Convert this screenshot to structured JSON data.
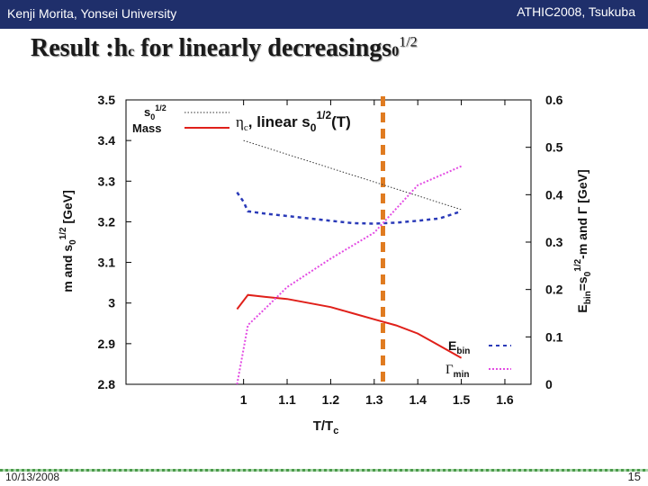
{
  "header": {
    "left": "Kenji Morita, Yonsei University",
    "right": "ATHIC2008, Tsukuba"
  },
  "title": {
    "main": "Result :h",
    "sub": "c",
    "rest": " for linearly decreasing",
    "s": "s",
    "s_sub": "0",
    "s_sup": "1/2"
  },
  "footer": {
    "date": "10/13/2008",
    "page": "15"
  },
  "colors": {
    "mass": "#e0201a",
    "ebin": "#2a3ab8",
    "gamma": "#e34de3",
    "s0": "#333333",
    "tc": "#e07b20"
  },
  "chart_data": {
    "type": "line",
    "title": "η_c, linear s0^1/2(T)",
    "xlabel": "T/Tc",
    "ylabel_left": "m and s0^1/2 [GeV]",
    "ylabel_right": "Ebin=s0^1/2-m and Γ [GeV]",
    "xlim": [
      0.73,
      1.66
    ],
    "x_ticks": [
      "1",
      "1.1",
      "1.2",
      "1.3",
      "1.4",
      "1.5",
      "1.6"
    ],
    "x_tick_values": [
      1.0,
      1.1,
      1.2,
      1.3,
      1.4,
      1.5,
      1.6
    ],
    "ylim_left": [
      2.8,
      3.5
    ],
    "y_left_ticks": [
      "2.8",
      "2.9",
      "3",
      "3.1",
      "3.2",
      "3.3",
      "3.4",
      "3.5"
    ],
    "y_left_tick_values": [
      2.8,
      2.9,
      3.0,
      3.1,
      3.2,
      3.3,
      3.4,
      3.5
    ],
    "ylim_right": [
      0,
      0.6
    ],
    "y_right_ticks": [
      "0",
      "0.1",
      "0.2",
      "0.3",
      "0.4",
      "0.5",
      "0.6"
    ],
    "y_right_tick_values": [
      0,
      0.1,
      0.2,
      0.3,
      0.4,
      0.5,
      0.6
    ],
    "tc_line_x": 1.32,
    "series": [
      {
        "name": "s0^1/2",
        "legend": "s0^1/2",
        "axis": "left",
        "style": "dotted",
        "x": [
          1.0,
          1.5
        ],
        "y": [
          3.4,
          3.23
        ]
      },
      {
        "name": "Mass",
        "legend": "Mass",
        "axis": "left",
        "style": "solid",
        "x": [
          0.985,
          1.01,
          1.05,
          1.1,
          1.2,
          1.25,
          1.3,
          1.35,
          1.4,
          1.45,
          1.5
        ],
        "y": [
          2.985,
          3.02,
          3.015,
          3.01,
          2.99,
          2.975,
          2.96,
          2.945,
          2.925,
          2.895,
          2.865
        ]
      },
      {
        "name": "Ebin",
        "legend": "Ebin",
        "axis": "right",
        "style": "dashed",
        "x": [
          0.985,
          1.0,
          1.01,
          1.05,
          1.1,
          1.2,
          1.25,
          1.3,
          1.35,
          1.4,
          1.45,
          1.5
        ],
        "y": [
          0.405,
          0.385,
          0.365,
          0.36,
          0.355,
          0.345,
          0.34,
          0.339,
          0.341,
          0.345,
          0.35,
          0.365
        ]
      },
      {
        "name": "Γmin",
        "legend": "Γmin",
        "axis": "right",
        "style": "dotted",
        "x": [
          0.985,
          1.01,
          1.05,
          1.1,
          1.2,
          1.3,
          1.35,
          1.4,
          1.45,
          1.5
        ],
        "y": [
          0.0,
          0.125,
          0.16,
          0.205,
          0.265,
          0.32,
          0.37,
          0.42,
          0.44,
          0.46
        ]
      }
    ]
  }
}
